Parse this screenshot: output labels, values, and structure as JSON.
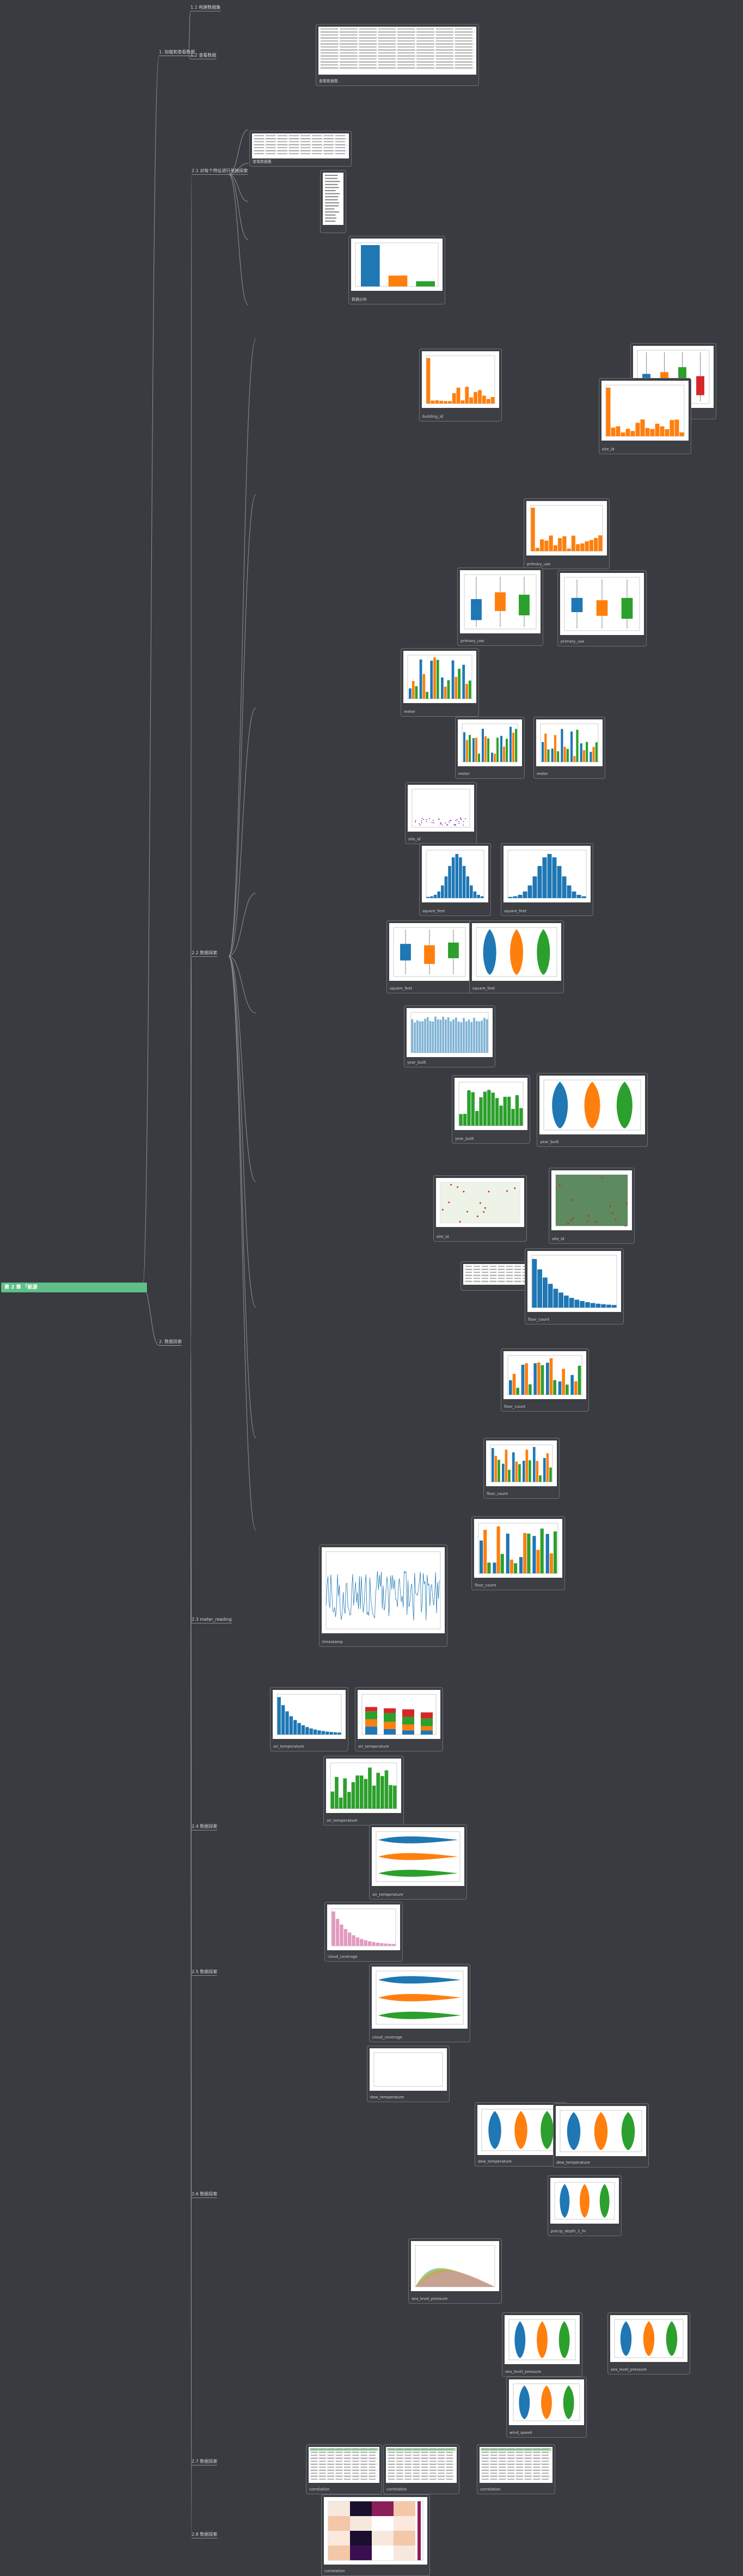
{
  "root": {
    "label": "第 2 章 「能源"
  },
  "level1": [
    {
      "id": "n1",
      "label": "1. 加载和查看数据"
    },
    {
      "id": "n2",
      "label": "2. 数据探索"
    }
  ],
  "level2": [
    {
      "id": "s11",
      "label": "1.1 构建数据集"
    },
    {
      "id": "s12",
      "label": "1.2 查看数据"
    },
    {
      "id": "s21",
      "label": "2.1 对每个特征进行单独探索"
    },
    {
      "id": "s22",
      "label": "2.2 数据探索"
    },
    {
      "id": "s23",
      "label": "2.3 meter_reading"
    },
    {
      "id": "s24",
      "label": "2.4 数据探索"
    },
    {
      "id": "s25",
      "label": "2.5 数据探索"
    },
    {
      "id": "s26",
      "label": "2.6 数据探索"
    },
    {
      "id": "s27",
      "label": "2.7 数据探索"
    },
    {
      "id": "s28",
      "label": "2.8 数据探索"
    }
  ],
  "cards": [
    {
      "id": "c1",
      "caption": "查看数据集"
    },
    {
      "id": "c2",
      "caption": "查看数据集"
    },
    {
      "id": "c3",
      "caption": "数据分布"
    },
    {
      "id": "c4",
      "caption": "building_id"
    },
    {
      "id": "c5",
      "caption": "meter"
    },
    {
      "id": "c6",
      "caption": "site_id"
    },
    {
      "id": "c7",
      "caption": "primary_use"
    },
    {
      "id": "c8",
      "caption": "square_feet"
    },
    {
      "id": "c9",
      "caption": "year_built"
    },
    {
      "id": "c10",
      "caption": "floor_count"
    },
    {
      "id": "c11",
      "caption": "air_temperature"
    },
    {
      "id": "c12",
      "caption": "cloud_coverage"
    },
    {
      "id": "c13",
      "caption": "dew_temperature"
    },
    {
      "id": "c14",
      "caption": "precip_depth_1_hr"
    },
    {
      "id": "c15",
      "caption": "sea_level_pressure"
    },
    {
      "id": "c16",
      "caption": "wind_direction"
    },
    {
      "id": "c17",
      "caption": "wind_speed"
    },
    {
      "id": "c18",
      "caption": "timestamp"
    },
    {
      "id": "c19",
      "caption": "correlation"
    }
  ],
  "colors": {
    "background": "#393b40",
    "root_fill": "#5fbf88",
    "line": "#8d9298",
    "blue": "#1f77b4",
    "orange": "#ff7f0e",
    "green": "#2ca02c",
    "red": "#d62728"
  }
}
